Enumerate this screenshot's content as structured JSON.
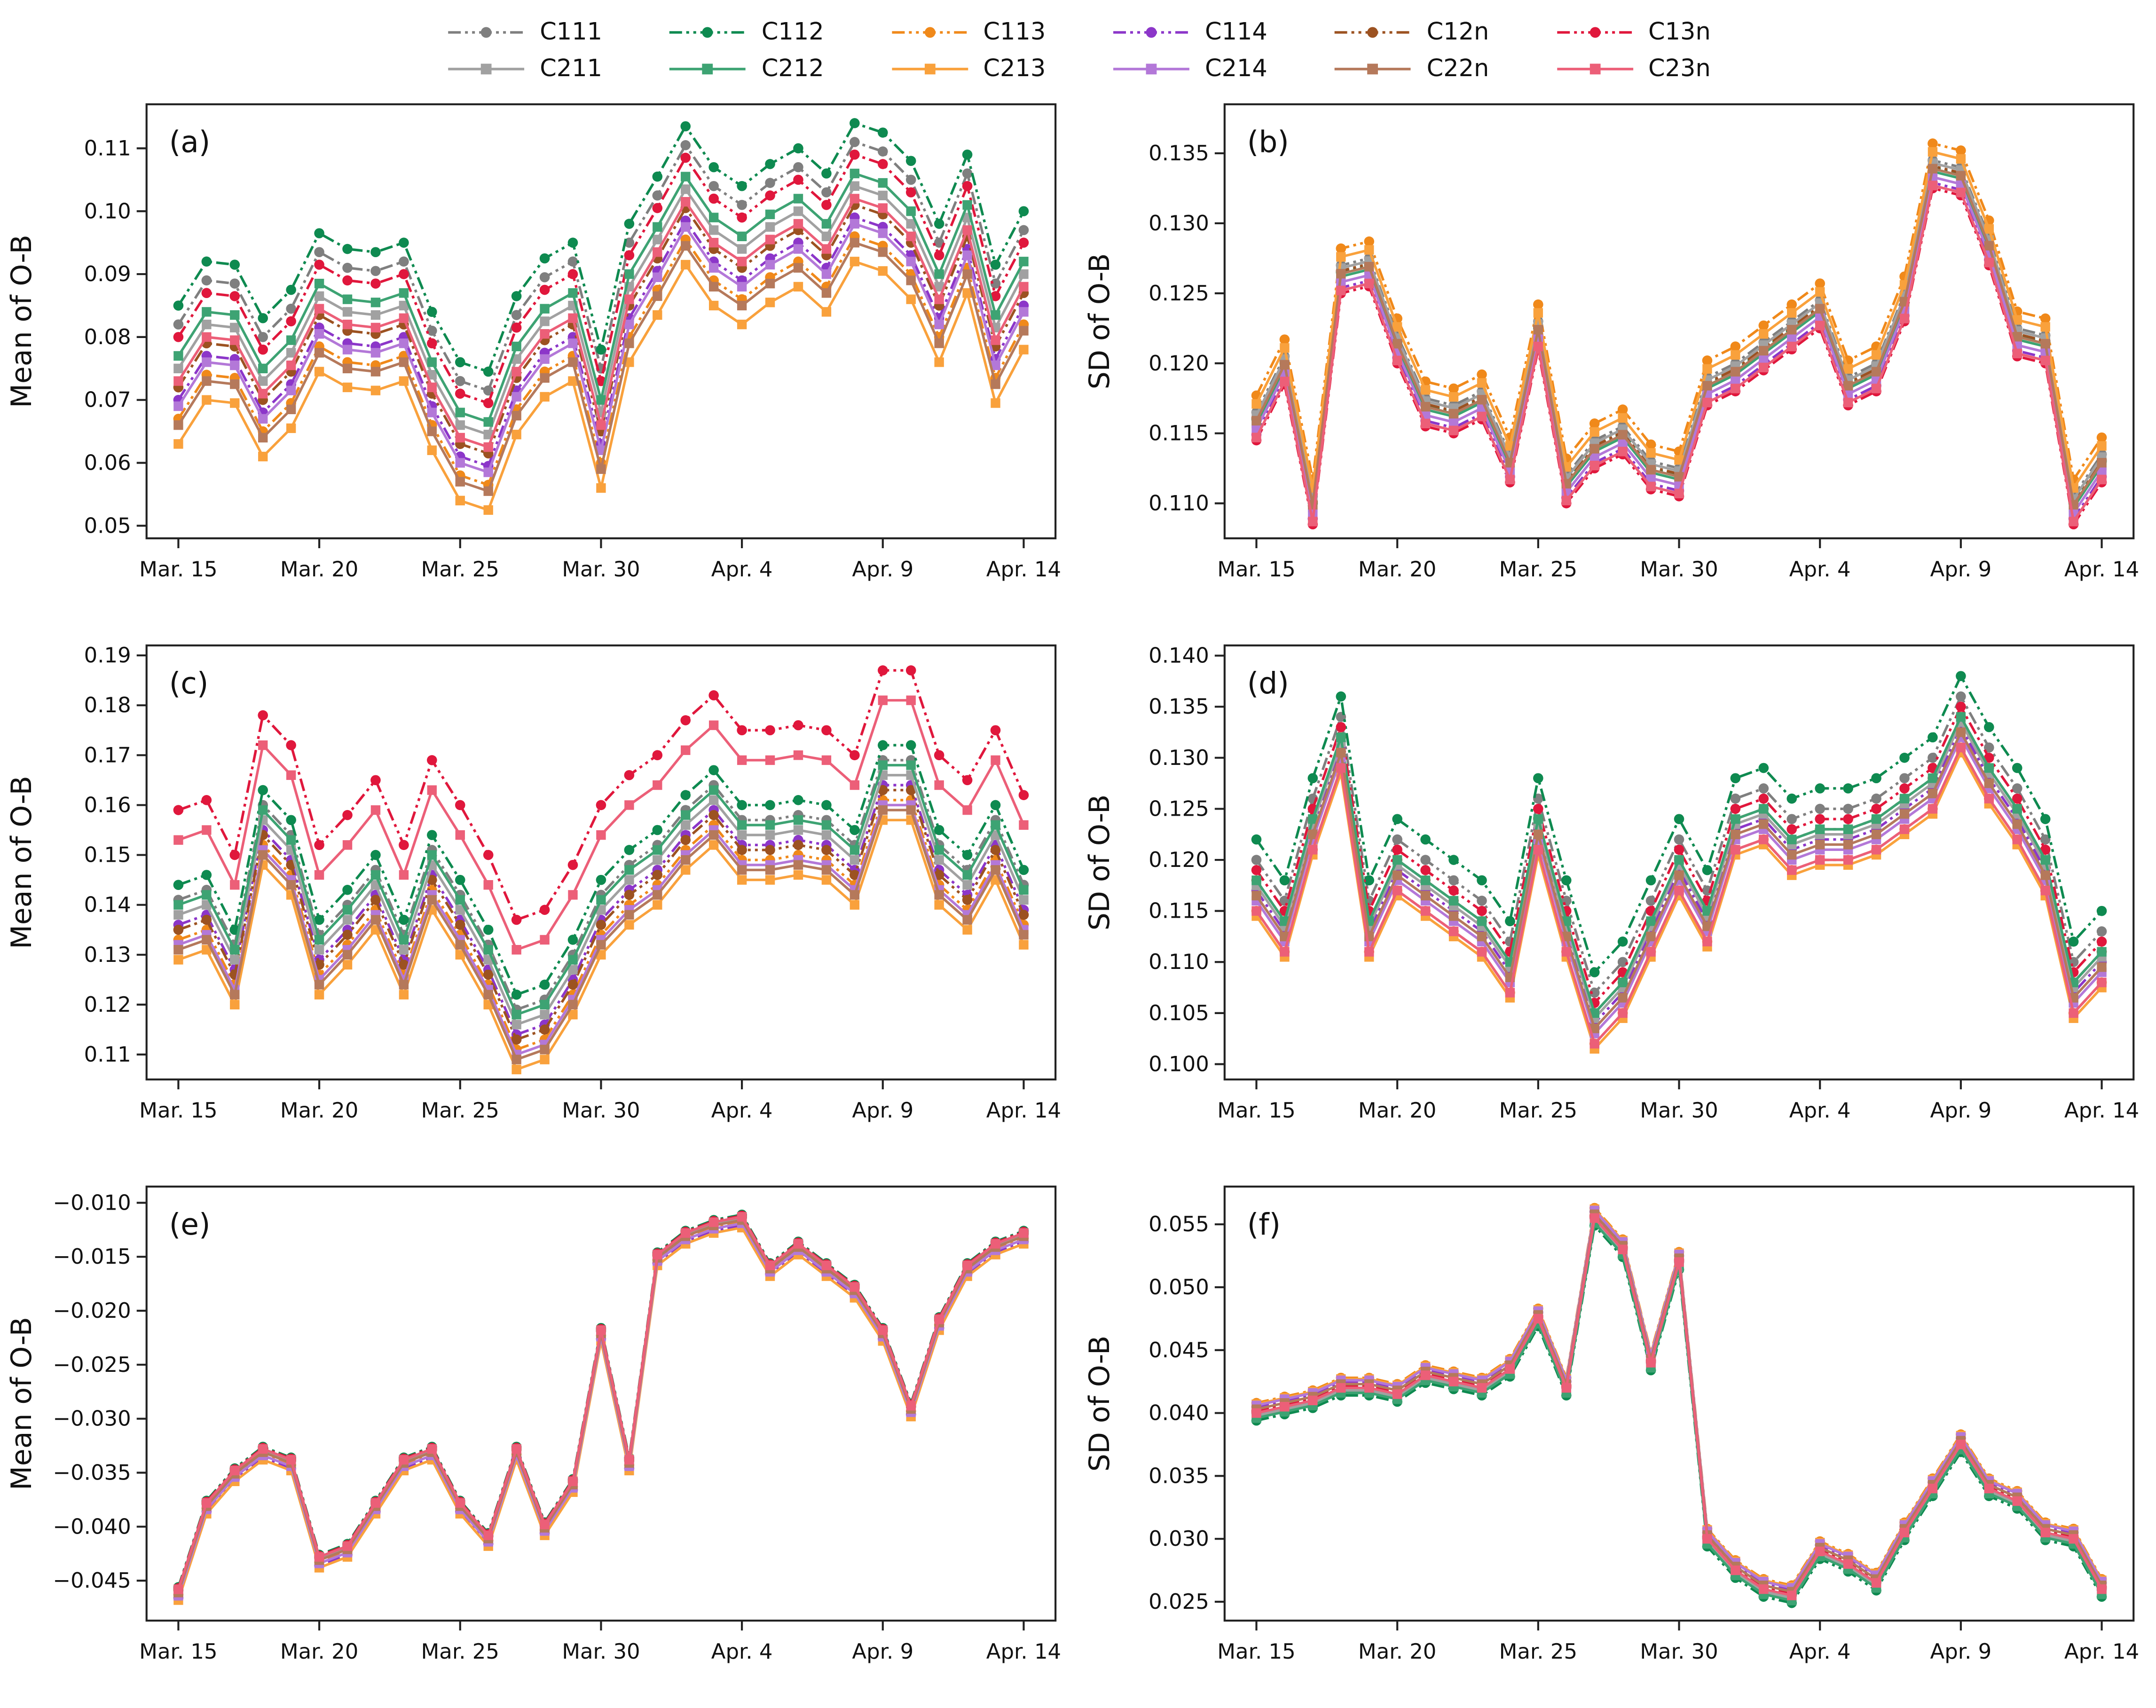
{
  "legend": {
    "row1": [
      "C111",
      "C112",
      "C113",
      "C114",
      "C12n",
      "C13n"
    ],
    "row2": [
      "C211",
      "C212",
      "C213",
      "C214",
      "C22n",
      "C23n"
    ]
  },
  "series_defs": [
    {
      "id": "C111",
      "label": "C111",
      "color": "#7f7f7f",
      "dash": "9 3 2 3 2 3",
      "marker": "circle"
    },
    {
      "id": "C112",
      "label": "C112",
      "color": "#0e8a50",
      "dash": "9 3 2 3 2 3",
      "marker": "circle"
    },
    {
      "id": "C113",
      "label": "C113",
      "color": "#f0891a",
      "dash": "9 3 2 3 2 3",
      "marker": "circle"
    },
    {
      "id": "C114",
      "label": "C114",
      "color": "#8c36c9",
      "dash": "9 3 2 3 2 3",
      "marker": "circle"
    },
    {
      "id": "C12n",
      "label": "C12n",
      "color": "#9c5221",
      "dash": "9 3 2 3 2 3",
      "marker": "circle"
    },
    {
      "id": "C13n",
      "label": "C13n",
      "color": "#e0173c",
      "dash": "9 3 2 3 2 3",
      "marker": "circle"
    },
    {
      "id": "C211",
      "label": "C211",
      "color": "#a1a1a1",
      "dash": "",
      "marker": "square"
    },
    {
      "id": "C212",
      "label": "C212",
      "color": "#3da373",
      "dash": "",
      "marker": "square"
    },
    {
      "id": "C213",
      "label": "C213",
      "color": "#f9a13c",
      "dash": "",
      "marker": "square"
    },
    {
      "id": "C214",
      "label": "C214",
      "color": "#b378d8",
      "dash": "",
      "marker": "square"
    },
    {
      "id": "C22n",
      "label": "C22n",
      "color": "#b5795b",
      "dash": "",
      "marker": "square"
    },
    {
      "id": "C23n",
      "label": "C23n",
      "color": "#ec5f78",
      "dash": "",
      "marker": "square"
    }
  ],
  "chart_data": [
    {
      "id": "a",
      "type": "line",
      "panel_label": "(a)",
      "ylabel": "Mean of O-B",
      "x_tick_labels": [
        "Mar. 15",
        "Mar. 20",
        "Mar. 25",
        "Mar. 30",
        "Apr. 4",
        "Apr. 9",
        "Apr. 14"
      ],
      "x_tick_index": [
        0,
        5,
        10,
        15,
        20,
        25,
        30
      ],
      "ylim": [
        0.048,
        0.117
      ],
      "ytick_vals": [
        0.05,
        0.06,
        0.07,
        0.08,
        0.09,
        0.1,
        0.11
      ],
      "ytick_labels": [
        "0.05",
        "0.06",
        "0.07",
        "0.08",
        "0.09",
        "0.10",
        "0.11"
      ],
      "value_model": "base_plus_offset",
      "base": [
        0.085,
        0.092,
        0.0915,
        0.083,
        0.0875,
        0.0965,
        0.094,
        0.0935,
        0.095,
        0.084,
        0.076,
        0.0745,
        0.0865,
        0.0925,
        0.095,
        0.078,
        0.098,
        0.1055,
        0.1135,
        0.107,
        0.104,
        0.1075,
        0.11,
        0.106,
        0.114,
        0.1125,
        0.108,
        0.098,
        0.109,
        0.0915,
        0.1
      ],
      "series": [
        {
          "name": "C111",
          "offset": -0.003
        },
        {
          "name": "C112",
          "offset": 0
        },
        {
          "name": "C113",
          "offset": -0.018
        },
        {
          "name": "C114",
          "offset": -0.015
        },
        {
          "name": "C12n",
          "offset": -0.013
        },
        {
          "name": "C13n",
          "offset": -0.005
        },
        {
          "name": "C211",
          "offset": -0.01
        },
        {
          "name": "C212",
          "offset": -0.008
        },
        {
          "name": "C213",
          "offset": -0.022
        },
        {
          "name": "C214",
          "offset": -0.016
        },
        {
          "name": "C22n",
          "offset": -0.019
        },
        {
          "name": "C23n",
          "offset": -0.012
        }
      ]
    },
    {
      "id": "b",
      "type": "line",
      "panel_label": "(b)",
      "ylabel": "SD of O-B",
      "x_tick_labels": [
        "Mar. 15",
        "Mar. 20",
        "Mar. 25",
        "Mar. 30",
        "Apr. 4",
        "Apr. 9",
        "Apr. 14"
      ],
      "x_tick_index": [
        0,
        5,
        10,
        15,
        20,
        25,
        30
      ],
      "ylim": [
        0.1075,
        0.1385
      ],
      "ytick_vals": [
        0.11,
        0.115,
        0.12,
        0.125,
        0.13,
        0.135
      ],
      "ytick_labels": [
        "0.110",
        "0.115",
        "0.120",
        "0.125",
        "0.130",
        "0.135"
      ],
      "value_model": "base_plus_offset",
      "base": [
        0.1155,
        0.1195,
        0.1095,
        0.126,
        0.1265,
        0.121,
        0.1165,
        0.116,
        0.117,
        0.1125,
        0.122,
        0.111,
        0.1135,
        0.1145,
        0.112,
        0.1115,
        0.118,
        0.119,
        0.1205,
        0.122,
        0.1235,
        0.118,
        0.119,
        0.124,
        0.1335,
        0.133,
        0.128,
        0.1215,
        0.121,
        0.1095,
        0.1125
      ],
      "series": [
        {
          "name": "C111",
          "offset": 0.001
        },
        {
          "name": "C112",
          "offset": 0.0005
        },
        {
          "name": "C113",
          "offset": 0.0022
        },
        {
          "name": "C114",
          "offset": -0.0006
        },
        {
          "name": "C12n",
          "offset": 0.0006
        },
        {
          "name": "C13n",
          "offset": -0.001
        },
        {
          "name": "C211",
          "offset": 0.0008
        },
        {
          "name": "C212",
          "offset": 0.0002
        },
        {
          "name": "C213",
          "offset": 0.0016
        },
        {
          "name": "C214",
          "offset": -0.0002
        },
        {
          "name": "C22n",
          "offset": 0.0004
        },
        {
          "name": "C23n",
          "offset": -0.0008
        }
      ]
    },
    {
      "id": "c",
      "type": "line",
      "panel_label": "(c)",
      "ylabel": "Mean of O-B",
      "x_tick_labels": [
        "Mar. 15",
        "Mar. 20",
        "Mar. 25",
        "Mar. 30",
        "Apr. 4",
        "Apr. 9",
        "Apr. 14"
      ],
      "x_tick_index": [
        0,
        5,
        10,
        15,
        20,
        25,
        30
      ],
      "ylim": [
        0.105,
        0.192
      ],
      "ytick_vals": [
        0.11,
        0.12,
        0.13,
        0.14,
        0.15,
        0.16,
        0.17,
        0.18,
        0.19
      ],
      "ytick_labels": [
        "0.11",
        "0.12",
        "0.13",
        "0.14",
        "0.15",
        "0.16",
        "0.17",
        "0.18",
        "0.19"
      ],
      "value_model": "base_plus_offset",
      "base": [
        0.159,
        0.161,
        0.15,
        0.178,
        0.172,
        0.152,
        0.158,
        0.165,
        0.152,
        0.169,
        0.16,
        0.15,
        0.137,
        0.139,
        0.148,
        0.16,
        0.166,
        0.17,
        0.177,
        0.182,
        0.175,
        0.175,
        0.176,
        0.175,
        0.17,
        0.187,
        0.187,
        0.17,
        0.165,
        0.175,
        0.162
      ],
      "series": [
        {
          "name": "C111",
          "offset": -0.018
        },
        {
          "name": "C112",
          "offset": -0.015
        },
        {
          "name": "C113",
          "offset": -0.026
        },
        {
          "name": "C114",
          "offset": -0.023
        },
        {
          "name": "C12n",
          "offset": -0.024
        },
        {
          "name": "C13n",
          "offset": 0
        },
        {
          "name": "C211",
          "offset": -0.021
        },
        {
          "name": "C212",
          "offset": -0.019
        },
        {
          "name": "C213",
          "offset": -0.03
        },
        {
          "name": "C214",
          "offset": -0.027
        },
        {
          "name": "C22n",
          "offset": -0.028
        },
        {
          "name": "C23n",
          "offset": -0.006
        }
      ]
    },
    {
      "id": "d",
      "type": "line",
      "panel_label": "(d)",
      "ylabel": "SD of O-B",
      "x_tick_labels": [
        "Mar. 15",
        "Mar. 20",
        "Mar. 25",
        "Mar. 30",
        "Apr. 4",
        "Apr. 9",
        "Apr. 14"
      ],
      "x_tick_index": [
        0,
        5,
        10,
        15,
        20,
        25,
        30
      ],
      "ylim": [
        0.0985,
        0.141
      ],
      "ytick_vals": [
        0.1,
        0.105,
        0.11,
        0.115,
        0.12,
        0.125,
        0.13,
        0.135,
        0.14
      ],
      "ytick_labels": [
        "0.100",
        "0.105",
        "0.110",
        "0.115",
        "0.120",
        "0.125",
        "0.130",
        "0.135",
        "0.140"
      ],
      "value_model": "base_plus_offset",
      "base": [
        0.116,
        0.112,
        0.122,
        0.13,
        0.112,
        0.118,
        0.116,
        0.114,
        0.112,
        0.108,
        0.122,
        0.112,
        0.103,
        0.106,
        0.112,
        0.118,
        0.113,
        0.122,
        0.123,
        0.12,
        0.121,
        0.121,
        0.122,
        0.124,
        0.126,
        0.132,
        0.127,
        0.123,
        0.118,
        0.106,
        0.109
      ],
      "series": [
        {
          "name": "C111",
          "offset": 0.004
        },
        {
          "name": "C112",
          "offset": 0.006
        },
        {
          "name": "C113",
          "offset": -0.001
        },
        {
          "name": "C114",
          "offset": 0.001
        },
        {
          "name": "C12n",
          "offset": 0.002
        },
        {
          "name": "C13n",
          "offset": 0.003
        },
        {
          "name": "C211",
          "offset": 0.0015
        },
        {
          "name": "C212",
          "offset": 0.002
        },
        {
          "name": "C213",
          "offset": -0.0015
        },
        {
          "name": "C214",
          "offset": 0
        },
        {
          "name": "C22n",
          "offset": 0.0005
        },
        {
          "name": "C23n",
          "offset": -0.001
        }
      ]
    },
    {
      "id": "e",
      "type": "line",
      "panel_label": "(e)",
      "ylabel": "Mean of O-B",
      "x_tick_labels": [
        "Mar. 15",
        "Mar. 20",
        "Mar. 25",
        "Mar. 30",
        "Apr. 4",
        "Apr. 9",
        "Apr. 14"
      ],
      "x_tick_index": [
        0,
        5,
        10,
        15,
        20,
        25,
        30
      ],
      "ylim": [
        -0.0487,
        -0.0085
      ],
      "ytick_vals": [
        -0.045,
        -0.04,
        -0.035,
        -0.03,
        -0.025,
        -0.02,
        -0.015,
        -0.01
      ],
      "ytick_labels": [
        "−0.045",
        "−0.040",
        "−0.035",
        "−0.030",
        "−0.025",
        "−0.020",
        "−0.015",
        "−0.010"
      ],
      "value_model": "base_plus_offset",
      "base": [
        -0.046,
        -0.038,
        -0.035,
        -0.033,
        -0.034,
        -0.043,
        -0.042,
        -0.038,
        -0.034,
        -0.033,
        -0.038,
        -0.041,
        -0.033,
        -0.04,
        -0.036,
        -0.022,
        -0.034,
        -0.015,
        -0.013,
        -0.012,
        -0.0115,
        -0.016,
        -0.014,
        -0.016,
        -0.018,
        -0.022,
        -0.029,
        -0.021,
        -0.016,
        -0.014,
        -0.013
      ],
      "series": [
        {
          "name": "C111",
          "offset": 0.0002
        },
        {
          "name": "C112",
          "offset": 0.0004
        },
        {
          "name": "C113",
          "offset": -0.0003
        },
        {
          "name": "C114",
          "offset": -0.0006
        },
        {
          "name": "C12n",
          "offset": 0.0001
        },
        {
          "name": "C13n",
          "offset": 0.0003
        },
        {
          "name": "C211",
          "offset": 0
        },
        {
          "name": "C212",
          "offset": 0.0002
        },
        {
          "name": "C213",
          "offset": -0.0008
        },
        {
          "name": "C214",
          "offset": -0.0004
        },
        {
          "name": "C22n",
          "offset": -0.0001
        },
        {
          "name": "C23n",
          "offset": 0.0002
        }
      ]
    },
    {
      "id": "f",
      "type": "line",
      "panel_label": "(f)",
      "ylabel": "SD of O-B",
      "x_tick_labels": [
        "Mar. 15",
        "Mar. 20",
        "Mar. 25",
        "Mar. 30",
        "Apr. 4",
        "Apr. 9",
        "Apr. 14"
      ],
      "x_tick_index": [
        0,
        5,
        10,
        15,
        20,
        25,
        30
      ],
      "ylim": [
        0.0235,
        0.058
      ],
      "ytick_vals": [
        0.025,
        0.03,
        0.035,
        0.04,
        0.045,
        0.05,
        0.055
      ],
      "ytick_labels": [
        "0.025",
        "0.030",
        "0.035",
        "0.040",
        "0.045",
        "0.050",
        "0.055"
      ],
      "value_model": "base_plus_offset",
      "base": [
        0.04,
        0.0405,
        0.041,
        0.042,
        0.042,
        0.0415,
        0.043,
        0.0425,
        0.042,
        0.0435,
        0.0475,
        0.042,
        0.0555,
        0.053,
        0.044,
        0.052,
        0.03,
        0.0275,
        0.026,
        0.0255,
        0.029,
        0.028,
        0.0265,
        0.0305,
        0.034,
        0.0375,
        0.034,
        0.033,
        0.0305,
        0.03,
        0.026
      ],
      "series": [
        {
          "name": "C111",
          "offset": 0
        },
        {
          "name": "C112",
          "offset": -0.0006
        },
        {
          "name": "C113",
          "offset": 0.0008
        },
        {
          "name": "C114",
          "offset": 0.0005
        },
        {
          "name": "C12n",
          "offset": 0.0002
        },
        {
          "name": "C13n",
          "offset": 0.0001
        },
        {
          "name": "C211",
          "offset": -0.0002
        },
        {
          "name": "C212",
          "offset": -0.0004
        },
        {
          "name": "C213",
          "offset": 0.0007
        },
        {
          "name": "C214",
          "offset": 0.0006
        },
        {
          "name": "C22n",
          "offset": 0.0003
        },
        {
          "name": "C23n",
          "offset": 0
        }
      ]
    }
  ]
}
